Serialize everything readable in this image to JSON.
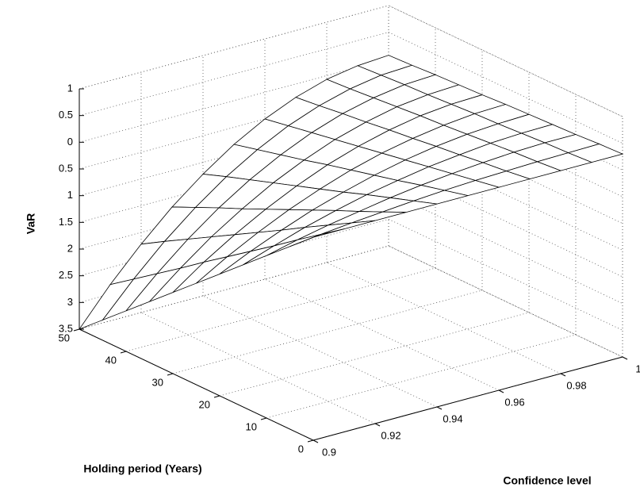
{
  "chart_data": {
    "type": "surface",
    "xlabel": "Confidence level",
    "ylabel": "Holding period (Years)",
    "zlabel": "VaR",
    "x": [
      0.9,
      0.91,
      0.92,
      0.93,
      0.94,
      0.95,
      0.96,
      0.97,
      0.98,
      0.99,
      1
    ],
    "y": [
      0,
      5,
      10,
      15,
      20,
      25,
      30,
      35,
      40,
      45,
      50
    ],
    "z": [
      [
        0.3,
        0.3,
        0.3,
        0.3,
        0.3,
        0.3,
        0.3,
        0.3,
        0.3,
        0.3,
        0.3
      ],
      [
        -0.08,
        -0.01,
        0.05,
        0.1,
        0.15,
        0.19,
        0.22,
        0.24,
        0.26,
        0.27,
        0.28
      ],
      [
        -0.46,
        -0.32,
        -0.2,
        -0.1,
        0.0,
        0.08,
        0.14,
        0.19,
        0.23,
        0.25,
        0.25
      ],
      [
        -0.84,
        -0.64,
        -0.45,
        -0.29,
        -0.15,
        -0.04,
        0.06,
        0.13,
        0.19,
        0.22,
        0.23
      ],
      [
        -1.22,
        -0.95,
        -0.71,
        -0.49,
        -0.31,
        -0.15,
        -0.02,
        0.08,
        0.15,
        0.19,
        0.21
      ],
      [
        -1.6,
        -1.26,
        -0.96,
        -0.69,
        -0.46,
        -0.26,
        -0.1,
        0.02,
        0.11,
        0.17,
        0.19
      ],
      [
        -1.98,
        -1.57,
        -1.21,
        -0.89,
        -0.61,
        -0.37,
        -0.18,
        -0.03,
        0.08,
        0.14,
        0.16
      ],
      [
        -2.36,
        -1.89,
        -1.46,
        -1.09,
        -0.76,
        -0.49,
        -0.26,
        -0.09,
        0.04,
        0.11,
        0.14
      ],
      [
        -2.74,
        -2.2,
        -1.71,
        -1.28,
        -0.91,
        -0.6,
        -0.34,
        -0.14,
        0.0,
        0.09,
        0.12
      ],
      [
        -3.12,
        -2.51,
        -1.96,
        -1.48,
        -1.06,
        -0.71,
        -0.42,
        -0.2,
        -0.04,
        0.06,
        0.09
      ],
      [
        -3.5,
        -2.82,
        -2.22,
        -1.68,
        -1.22,
        -0.82,
        -0.5,
        -0.25,
        -0.07,
        0.03,
        0.07
      ]
    ],
    "xlim": [
      0.9,
      1
    ],
    "xticks": [
      0.9,
      0.92,
      0.94,
      0.96,
      0.98,
      1
    ],
    "ylim": [
      0,
      50
    ],
    "yticks": [
      0,
      10,
      20,
      30,
      40,
      50
    ],
    "zlim": [
      -3.5,
      1
    ],
    "zticks": [
      {
        "value": -3.5,
        "label": "3.5"
      },
      {
        "value": -3,
        "label": "3"
      },
      {
        "value": -2.5,
        "label": "2.5"
      },
      {
        "value": -2,
        "label": "2"
      },
      {
        "value": -1.5,
        "label": "1.5"
      },
      {
        "value": -1,
        "label": "1"
      },
      {
        "value": -0.5,
        "label": "0.5"
      },
      0,
      0.5,
      1
    ],
    "grid": true,
    "color": "#000000"
  }
}
